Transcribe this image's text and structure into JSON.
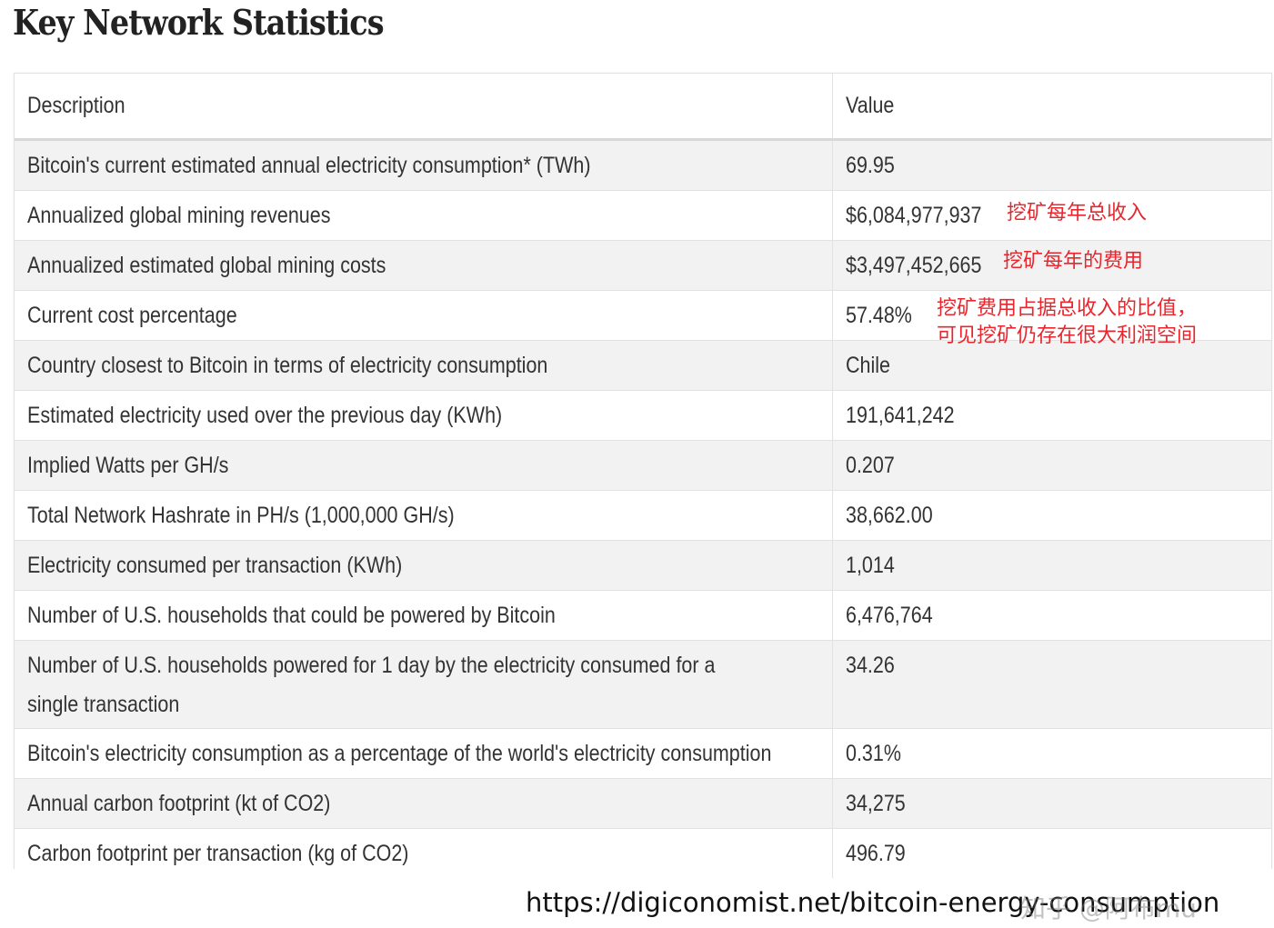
{
  "title": "Key Network Statistics",
  "table": {
    "headers": [
      "Description",
      "Value"
    ],
    "rows": [
      {
        "description": "Bitcoin's current estimated annual electricity consumption* (TWh)",
        "value": "69.95"
      },
      {
        "description": "Annualized global mining revenues",
        "value": "$6,084,977,937"
      },
      {
        "description": "Annualized estimated global mining costs",
        "value": "$3,497,452,665"
      },
      {
        "description": "Current cost percentage",
        "value": "57.48%"
      },
      {
        "description": "Country closest to Bitcoin in terms of electricity consumption",
        "value": "Chile"
      },
      {
        "description": "Estimated electricity used over the previous day (KWh)",
        "value": "191,641,242"
      },
      {
        "description": "Implied Watts per GH/s",
        "value": "0.207"
      },
      {
        "description": "Total Network Hashrate in PH/s (1,000,000 GH/s)",
        "value": "38,662.00"
      },
      {
        "description": "Electricity consumed per transaction (KWh)",
        "value": "1,014"
      },
      {
        "description": "Number of U.S. households that could be powered by Bitcoin",
        "value": "6,476,764"
      },
      {
        "description": "Number of U.S. households powered for 1 day by the electricity consumed for a single transaction",
        "value": "34.26"
      },
      {
        "description": "Bitcoin's electricity consumption as a percentage of the world's electricity consumption",
        "value": "0.31%"
      },
      {
        "description": "Annual carbon footprint (kt of CO2)",
        "value": "34,275"
      },
      {
        "description": "Carbon footprint per transaction (kg of CO2)",
        "value": "496.79"
      }
    ]
  },
  "annotations": {
    "revenue_note": "挖矿每年总收入",
    "cost_note": "挖矿每年的费用",
    "percentage_note_line1": "挖矿费用占据总收入的比值，",
    "percentage_note_line2": "可见挖矿仍存在很大利润空间",
    "color": "#e8262d"
  },
  "source_url": "https://digiconomist.net/bitcoin-energy-consumption",
  "watermark": "知乎 @阿布mu"
}
